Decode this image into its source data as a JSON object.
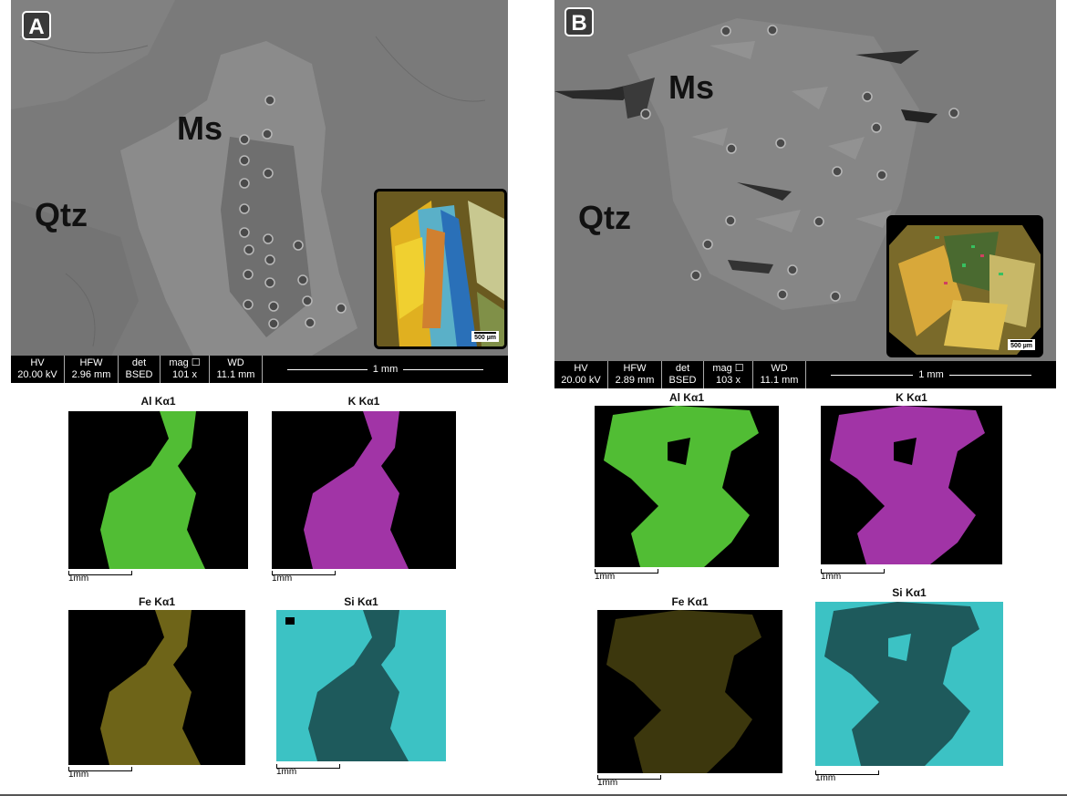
{
  "panels": [
    {
      "label": "A",
      "minerals": {
        "ms": "Ms",
        "qtz": "Qtz"
      },
      "inset_scale": "500 µm",
      "databar": {
        "hv_head": "HV",
        "hv_val": "20.00 kV",
        "hfw_head": "HFW",
        "hfw_val": "2.96 mm",
        "det_head": "det",
        "det_val": "BSED",
        "mag_head": "mag ☐",
        "mag_val": "101 x",
        "wd_head": "WD",
        "wd_val": "11.1 mm",
        "scale": "1 mm"
      },
      "maps": [
        {
          "title": "Al Kα1",
          "scale": "1mm",
          "color": "#5ad23a"
        },
        {
          "title": "K Kα1",
          "scale": "1mm",
          "color": "#b23ab8"
        },
        {
          "title": "Fe Kα1",
          "scale": "1mm",
          "color": "#c8b62c"
        },
        {
          "title": "Si Kα1",
          "scale": "1mm",
          "color": "#3cc2c4"
        }
      ]
    },
    {
      "label": "B",
      "minerals": {
        "ms": "Ms",
        "qtz": "Qtz"
      },
      "inset_scale": "500 µm",
      "databar": {
        "hv_head": "HV",
        "hv_val": "20.00 kV",
        "hfw_head": "HFW",
        "hfw_val": "2.89 mm",
        "det_head": "det",
        "det_val": "BSED",
        "mag_head": "mag ☐",
        "mag_val": "103 x",
        "wd_head": "WD",
        "wd_val": "11.1 mm",
        "scale": "1 mm"
      },
      "maps": [
        {
          "title": "Al Kα1",
          "scale": "1mm",
          "color": "#5ad23a"
        },
        {
          "title": "K Kα1",
          "scale": "1mm",
          "color": "#b23ab8"
        },
        {
          "title": "Fe Kα1",
          "scale": "1mm",
          "color": "#c8b62c"
        },
        {
          "title": "Si Kα1",
          "scale": "1mm",
          "color": "#3cc2c4"
        }
      ]
    }
  ]
}
